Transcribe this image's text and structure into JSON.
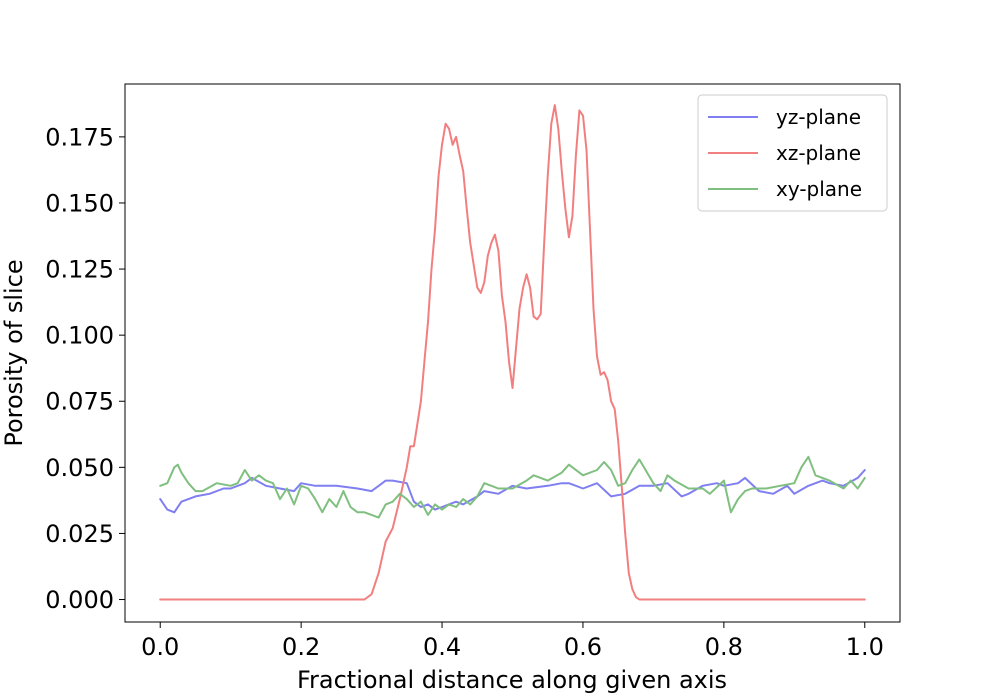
{
  "chart_data": {
    "type": "line",
    "title": "",
    "xlabel": "Fractional distance along given axis",
    "ylabel": "Porosity of slice",
    "xlim": [
      -0.05,
      1.05
    ],
    "ylim": [
      -0.0085,
      0.195
    ],
    "x_ticks": [
      0.0,
      0.2,
      0.4,
      0.6,
      0.8,
      1.0
    ],
    "x_tick_labels": [
      "0.0",
      "0.2",
      "0.4",
      "0.6",
      "0.8",
      "1.0"
    ],
    "y_ticks": [
      0.0,
      0.025,
      0.05,
      0.075,
      0.1,
      0.125,
      0.15,
      0.175
    ],
    "y_tick_labels": [
      "0.000",
      "0.025",
      "0.050",
      "0.075",
      "0.100",
      "0.125",
      "0.150",
      "0.175"
    ],
    "grid": false,
    "legend_position": "top-right",
    "series": [
      {
        "name": "yz-plane",
        "color": "#7f7ff2",
        "x": [
          0.0,
          0.01,
          0.02,
          0.03,
          0.05,
          0.07,
          0.09,
          0.1,
          0.12,
          0.13,
          0.15,
          0.17,
          0.19,
          0.2,
          0.22,
          0.25,
          0.28,
          0.3,
          0.32,
          0.33,
          0.35,
          0.36,
          0.37,
          0.38,
          0.39,
          0.4,
          0.42,
          0.43,
          0.45,
          0.46,
          0.48,
          0.5,
          0.52,
          0.55,
          0.57,
          0.58,
          0.6,
          0.62,
          0.64,
          0.66,
          0.68,
          0.7,
          0.72,
          0.74,
          0.75,
          0.77,
          0.79,
          0.8,
          0.82,
          0.83,
          0.85,
          0.87,
          0.89,
          0.9,
          0.92,
          0.94,
          0.95,
          0.97,
          0.99,
          1.0
        ],
        "y": [
          0.038,
          0.034,
          0.033,
          0.037,
          0.039,
          0.04,
          0.042,
          0.042,
          0.044,
          0.046,
          0.043,
          0.042,
          0.041,
          0.044,
          0.043,
          0.043,
          0.042,
          0.041,
          0.045,
          0.045,
          0.044,
          0.037,
          0.035,
          0.036,
          0.034,
          0.035,
          0.037,
          0.036,
          0.039,
          0.041,
          0.04,
          0.043,
          0.042,
          0.043,
          0.044,
          0.044,
          0.042,
          0.044,
          0.039,
          0.04,
          0.043,
          0.043,
          0.044,
          0.039,
          0.04,
          0.043,
          0.044,
          0.043,
          0.044,
          0.046,
          0.041,
          0.04,
          0.043,
          0.04,
          0.043,
          0.045,
          0.044,
          0.043,
          0.046,
          0.049
        ]
      },
      {
        "name": "xz-plane",
        "color": "#f27f7f",
        "x": [
          0.0,
          0.1,
          0.2,
          0.28,
          0.29,
          0.3,
          0.31,
          0.32,
          0.33,
          0.34,
          0.35,
          0.355,
          0.36,
          0.37,
          0.375,
          0.38,
          0.385,
          0.39,
          0.395,
          0.4,
          0.405,
          0.41,
          0.415,
          0.42,
          0.425,
          0.43,
          0.435,
          0.44,
          0.45,
          0.455,
          0.46,
          0.465,
          0.47,
          0.475,
          0.48,
          0.485,
          0.49,
          0.495,
          0.5,
          0.505,
          0.51,
          0.515,
          0.52,
          0.525,
          0.53,
          0.535,
          0.54,
          0.545,
          0.55,
          0.555,
          0.56,
          0.565,
          0.57,
          0.575,
          0.58,
          0.585,
          0.59,
          0.595,
          0.6,
          0.605,
          0.61,
          0.615,
          0.62,
          0.625,
          0.63,
          0.635,
          0.64,
          0.645,
          0.65,
          0.655,
          0.66,
          0.665,
          0.67,
          0.675,
          0.68,
          0.685,
          0.69,
          0.7,
          0.8,
          0.9,
          1.0
        ],
        "y": [
          0.0,
          0.0,
          0.0,
          0.0,
          0.0,
          0.002,
          0.01,
          0.022,
          0.027,
          0.038,
          0.05,
          0.058,
          0.058,
          0.075,
          0.09,
          0.105,
          0.125,
          0.14,
          0.16,
          0.172,
          0.18,
          0.178,
          0.172,
          0.175,
          0.168,
          0.162,
          0.148,
          0.135,
          0.118,
          0.116,
          0.12,
          0.13,
          0.135,
          0.138,
          0.132,
          0.115,
          0.105,
          0.09,
          0.08,
          0.095,
          0.11,
          0.118,
          0.123,
          0.118,
          0.107,
          0.106,
          0.108,
          0.135,
          0.16,
          0.18,
          0.187,
          0.178,
          0.162,
          0.148,
          0.137,
          0.145,
          0.168,
          0.185,
          0.183,
          0.17,
          0.14,
          0.11,
          0.092,
          0.085,
          0.086,
          0.083,
          0.075,
          0.072,
          0.06,
          0.043,
          0.025,
          0.01,
          0.004,
          0.001,
          0.0,
          0.0,
          0.0,
          0.0,
          0.0,
          0.0,
          0.0
        ]
      },
      {
        "name": "xy-plane",
        "color": "#7fbf7f",
        "x": [
          0.0,
          0.01,
          0.02,
          0.025,
          0.03,
          0.04,
          0.05,
          0.06,
          0.08,
          0.1,
          0.11,
          0.12,
          0.13,
          0.14,
          0.15,
          0.16,
          0.17,
          0.18,
          0.19,
          0.2,
          0.21,
          0.22,
          0.23,
          0.24,
          0.25,
          0.26,
          0.27,
          0.28,
          0.29,
          0.3,
          0.31,
          0.32,
          0.33,
          0.34,
          0.35,
          0.36,
          0.37,
          0.38,
          0.39,
          0.4,
          0.41,
          0.42,
          0.43,
          0.44,
          0.45,
          0.46,
          0.47,
          0.48,
          0.5,
          0.52,
          0.53,
          0.55,
          0.57,
          0.58,
          0.6,
          0.62,
          0.63,
          0.64,
          0.65,
          0.66,
          0.67,
          0.68,
          0.7,
          0.71,
          0.72,
          0.73,
          0.75,
          0.77,
          0.78,
          0.8,
          0.81,
          0.82,
          0.83,
          0.84,
          0.86,
          0.88,
          0.9,
          0.91,
          0.92,
          0.93,
          0.95,
          0.97,
          0.98,
          0.99,
          1.0
        ],
        "y": [
          0.043,
          0.044,
          0.05,
          0.051,
          0.048,
          0.044,
          0.041,
          0.041,
          0.044,
          0.043,
          0.044,
          0.049,
          0.045,
          0.047,
          0.045,
          0.044,
          0.038,
          0.042,
          0.036,
          0.043,
          0.042,
          0.038,
          0.033,
          0.038,
          0.035,
          0.041,
          0.035,
          0.033,
          0.033,
          0.032,
          0.031,
          0.036,
          0.037,
          0.04,
          0.038,
          0.035,
          0.037,
          0.032,
          0.036,
          0.034,
          0.036,
          0.035,
          0.038,
          0.036,
          0.039,
          0.044,
          0.043,
          0.042,
          0.042,
          0.045,
          0.047,
          0.045,
          0.048,
          0.051,
          0.047,
          0.049,
          0.052,
          0.049,
          0.043,
          0.044,
          0.049,
          0.053,
          0.044,
          0.041,
          0.047,
          0.045,
          0.042,
          0.042,
          0.04,
          0.045,
          0.033,
          0.038,
          0.041,
          0.042,
          0.042,
          0.043,
          0.044,
          0.05,
          0.054,
          0.047,
          0.045,
          0.042,
          0.045,
          0.042,
          0.046
        ]
      }
    ]
  }
}
